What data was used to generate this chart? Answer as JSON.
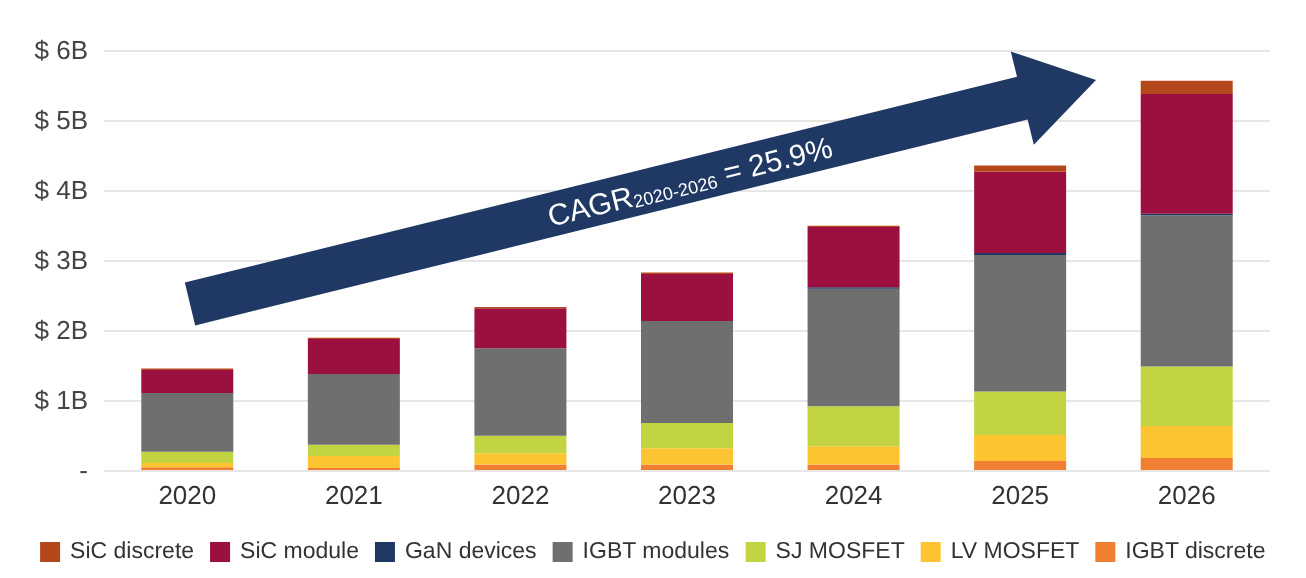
{
  "chart_data": {
    "type": "bar",
    "stacked": true,
    "categories": [
      "2020",
      "2021",
      "2022",
      "2023",
      "2024",
      "2025",
      "2026"
    ],
    "series": [
      {
        "name": "IGBT discrete",
        "color": "#f07f32",
        "values": [
          0.04,
          0.03,
          0.08,
          0.08,
          0.08,
          0.13,
          0.17
        ]
      },
      {
        "name": "LV MOSFET",
        "color": "#fdc431",
        "values": [
          0.06,
          0.17,
          0.16,
          0.23,
          0.26,
          0.37,
          0.46
        ]
      },
      {
        "name": "SJ MOSFET",
        "color": "#c2d442",
        "values": [
          0.16,
          0.16,
          0.25,
          0.36,
          0.57,
          0.62,
          0.85
        ]
      },
      {
        "name": "IGBT modules",
        "color": "#6f6f6f",
        "values": [
          0.84,
          1.01,
          1.25,
          1.46,
          1.68,
          1.95,
          2.16
        ]
      },
      {
        "name": "GaN devices",
        "color": "#1f3864",
        "values": [
          null,
          null,
          null,
          null,
          0.02,
          0.03,
          0.02
        ]
      },
      {
        "name": "SiC module",
        "color": "#9b1040",
        "values": [
          0.33,
          0.5,
          0.57,
          0.67,
          0.86,
          1.16,
          1.71
        ]
      },
      {
        "name": "SiC discrete",
        "color": "#b5481b",
        "values": [
          0.02,
          0.02,
          0.02,
          0.02,
          0.02,
          0.09,
          0.19
        ]
      }
    ],
    "ylim": [
      0,
      6
    ],
    "yticks": [
      {
        "value": 0,
        "label": "-"
      },
      {
        "value": 1,
        "label": "$ 1B"
      },
      {
        "value": 2,
        "label": "$ 2B"
      },
      {
        "value": 3,
        "label": "$ 3B"
      },
      {
        "value": 4,
        "label": "$ 4B"
      },
      {
        "value": 5,
        "label": "$ 5B"
      },
      {
        "value": 6,
        "label": "$ 6B"
      }
    ],
    "grid": "y",
    "legend": "bottom",
    "annotations": [
      "CAGR$_{2020-2026}$ = 25.9%"
    ]
  }
}
